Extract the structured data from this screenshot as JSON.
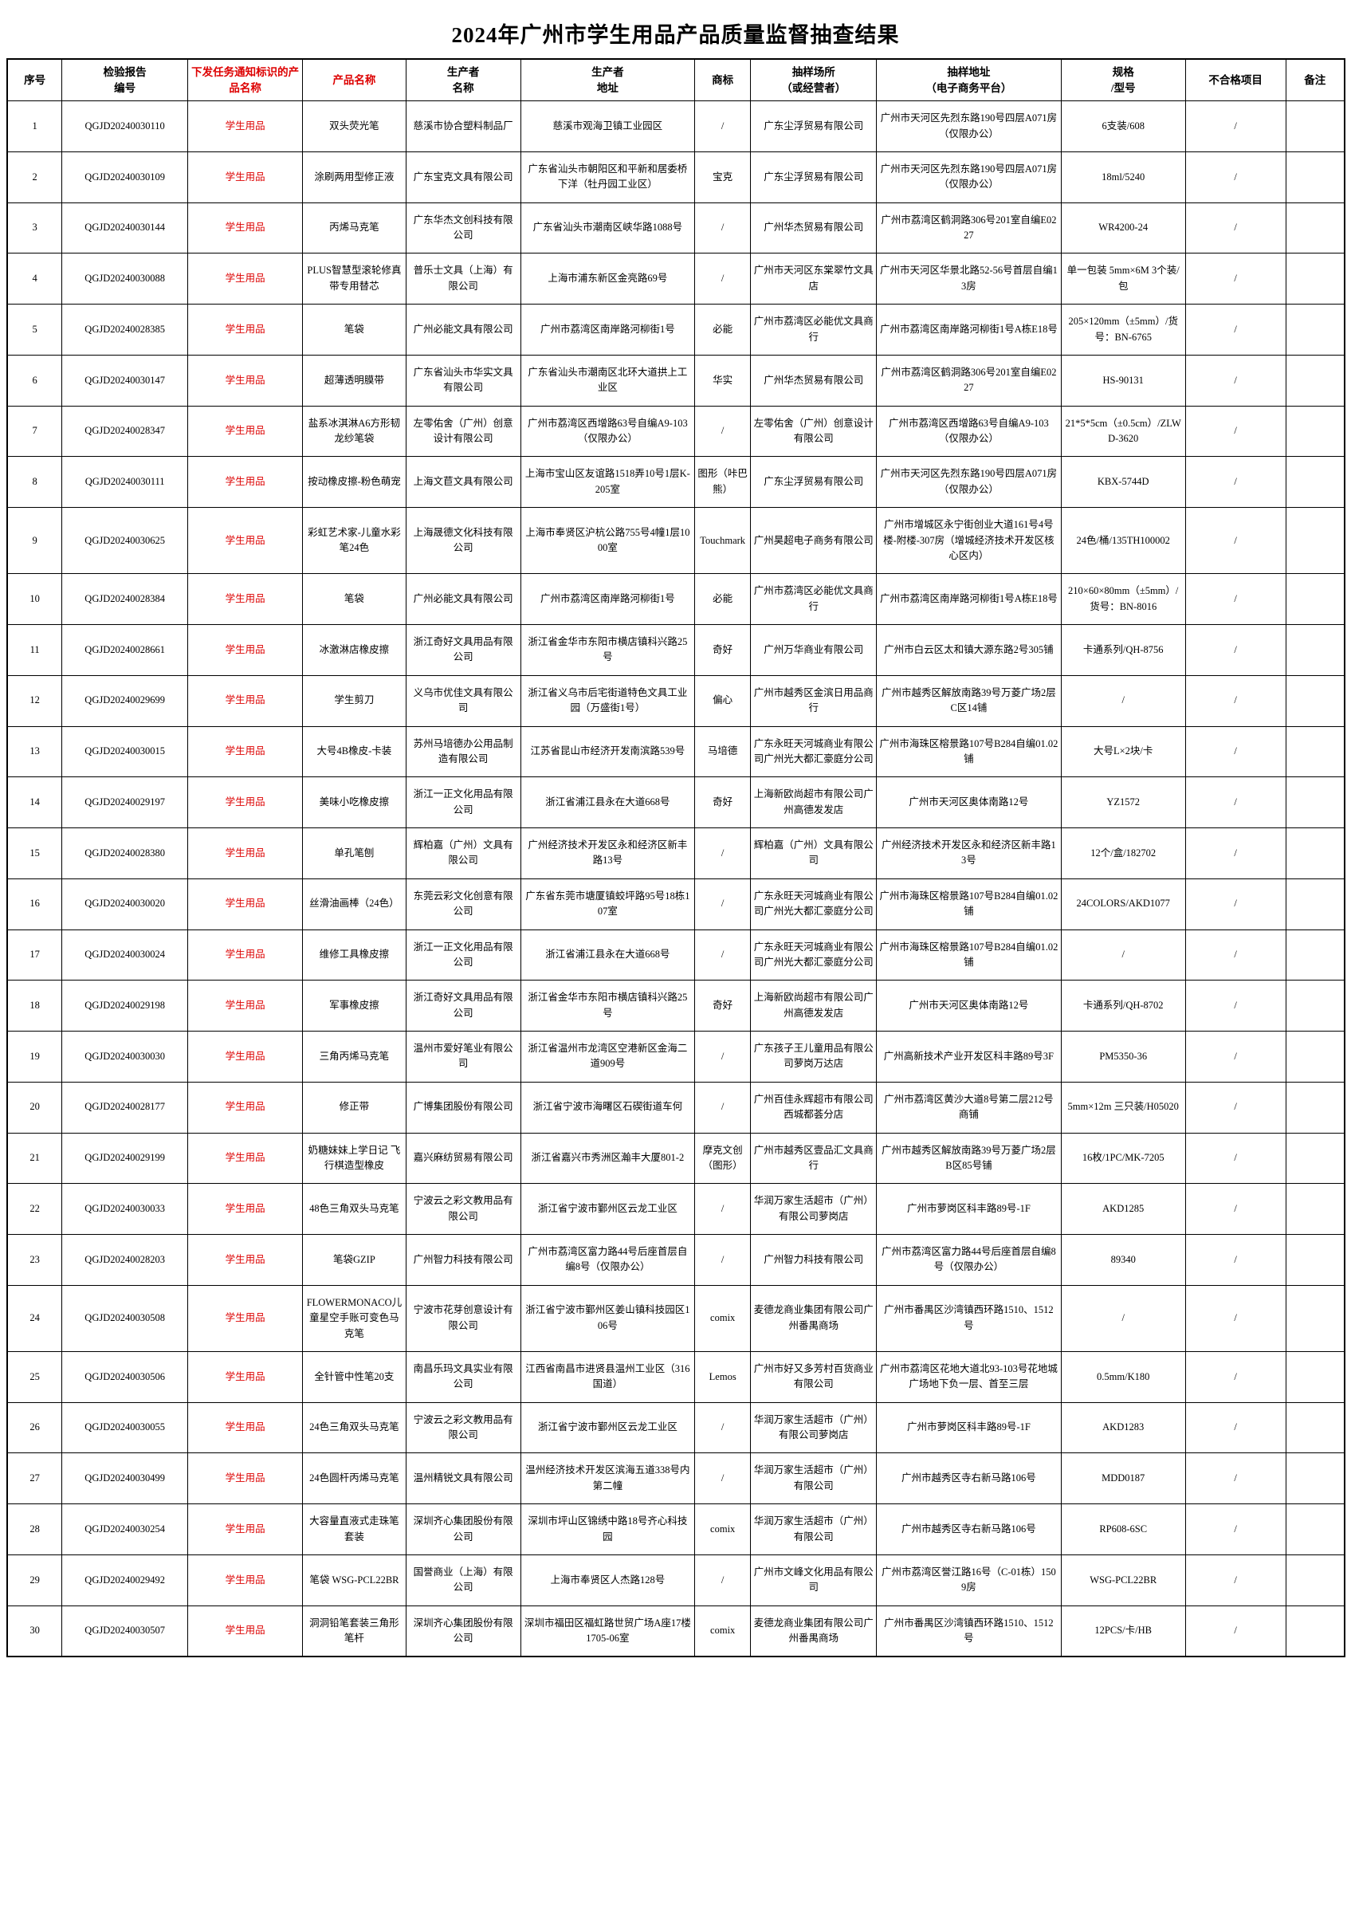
{
  "title": "2024年广州市学生用品产品质量监督抽查结果",
  "accent_red": "#dd0000",
  "table": {
    "columns": [
      {
        "label": "序号",
        "red": false
      },
      {
        "label": "检验报告\n编号",
        "red": false
      },
      {
        "label": "下发任务通知标识的产品名称",
        "red": true
      },
      {
        "label": "产品名称",
        "red": true
      },
      {
        "label": "生产者\n名称",
        "red": false
      },
      {
        "label": "生产者\n地址",
        "red": false
      },
      {
        "label": "商标",
        "red": false
      },
      {
        "label": "抽样场所\n（或经营者）",
        "red": false
      },
      {
        "label": "抽样地址\n（电子商务平台）",
        "red": false
      },
      {
        "label": "规格\n/型号",
        "red": false
      },
      {
        "label": "不合格项目",
        "red": false
      },
      {
        "label": "备注",
        "red": false
      }
    ],
    "red_value_column": 2,
    "rows": [
      [
        "1",
        "QGJD20240030110",
        "学生用品",
        "双头荧光笔",
        "慈溪市协合塑料制品厂",
        "慈溪市观海卫镇工业园区",
        "/",
        "广东尘浮贸易有限公司",
        "广州市天河区先烈东路190号四层A071房（仅限办公）",
        "6支装/608",
        "/",
        ""
      ],
      [
        "2",
        "QGJD20240030109",
        "学生用品",
        "涂刷两用型修正液",
        "广东宝克文具有限公司",
        "广东省汕头市朝阳区和平新和居委桥下洋（牡丹园工业区）",
        "宝克",
        "广东尘浮贸易有限公司",
        "广州市天河区先烈东路190号四层A071房（仅限办公）",
        "18ml/5240",
        "/",
        ""
      ],
      [
        "3",
        "QGJD20240030144",
        "学生用品",
        "丙烯马克笔",
        "广东华杰文创科技有限公司",
        "广东省汕头市潮南区峡华路1088号",
        "/",
        "广州华杰贸易有限公司",
        "广州市荔湾区鹤洞路306号201室自编E0227",
        "WR4200-24",
        "/",
        ""
      ],
      [
        "4",
        "QGJD20240030088",
        "学生用品",
        "PLUS智慧型滚轮修真带专用替芯",
        "普乐士文具（上海）有限公司",
        "上海市浦东新区金亮路69号",
        "/",
        "广州市天河区东棠翠竹文具店",
        "广州市天河区华景北路52-56号首层自编13房",
        "单一包装 5mm×6M 3个装/包",
        "/",
        ""
      ],
      [
        "5",
        "QGJD20240028385",
        "学生用品",
        "笔袋",
        "广州必能文具有限公司",
        "广州市荔湾区南岸路河柳街1号",
        "必能",
        "广州市荔湾区必能优文具商行",
        "广州市荔湾区南岸路河柳街1号A栋E18号",
        "205×120mm（±5mm）/货号：BN-6765",
        "/",
        ""
      ],
      [
        "6",
        "QGJD20240030147",
        "学生用品",
        "超薄透明膜带",
        "广东省汕头市华实文具有限公司",
        "广东省汕头市潮南区北环大道拱上工业区",
        "华实",
        "广州华杰贸易有限公司",
        "广州市荔湾区鹤洞路306号201室自编E0227",
        "HS-90131",
        "/",
        ""
      ],
      [
        "7",
        "QGJD20240028347",
        "学生用品",
        "盐系冰淇淋A6方形韧龙纱笔袋",
        "左零佑舍（广州）创意设计有限公司",
        "广州市荔湾区西增路63号自编A9-103（仅限办公）",
        "/",
        "左零佑舍（广州）创意设计有限公司",
        "广州市荔湾区西增路63号自编A9-103（仅限办公）",
        "21*5*5cm（±0.5cm）/ZLWD-3620",
        "/",
        ""
      ],
      [
        "8",
        "QGJD20240030111",
        "学生用品",
        "按动橡皮擦-粉色萌宠",
        "上海文苣文具有限公司",
        "上海市宝山区友谊路1518弄10号1层K-205室",
        "图形（咔巴熊）",
        "广东尘浮贸易有限公司",
        "广州市天河区先烈东路190号四层A071房（仅限办公）",
        "KBX-5744D",
        "/",
        ""
      ],
      [
        "9",
        "QGJD20240030625",
        "学生用品",
        "彩虹艺术家-儿童水彩笔24色",
        "上海晟德文化科技有限公司",
        "上海市奉贤区沪杭公路755号4幢1层1000室",
        "Touchmark",
        "广州昊超电子商务有限公司",
        "广州市增城区永宁街创业大道161号4号楼-附楼-307房（增城经济技术开发区核心区内）",
        "24色/桶/135TH100002",
        "/",
        ""
      ],
      [
        "10",
        "QGJD20240028384",
        "学生用品",
        "笔袋",
        "广州必能文具有限公司",
        "广州市荔湾区南岸路河柳街1号",
        "必能",
        "广州市荔湾区必能优文具商行",
        "广州市荔湾区南岸路河柳街1号A栋E18号",
        "210×60×80mm（±5mm）/货号：BN-8016",
        "/",
        ""
      ],
      [
        "11",
        "QGJD20240028661",
        "学生用品",
        "冰激淋店橡皮擦",
        "浙江奇好文具用品有限公司",
        "浙江省金华市东阳市横店镇科兴路25号",
        "奇好",
        "广州万华商业有限公司",
        "广州市白云区太和镇大源东路2号305铺",
        "卡通系列/QH-8756",
        "/",
        ""
      ],
      [
        "12",
        "QGJD20240029699",
        "学生用品",
        "学生剪刀",
        "义乌市优佳文具有限公司",
        "浙江省义乌市后宅街道特色文具工业园（万盛街1号）",
        "偏心",
        "广州市越秀区金滨日用品商行",
        "广州市越秀区解放南路39号万菱广场2层C区14铺",
        "/",
        "/",
        ""
      ],
      [
        "13",
        "QGJD20240030015",
        "学生用品",
        "大号4B橡皮-卡装",
        "苏州马培德办公用品制造有限公司",
        "江苏省昆山市经济开发南滨路539号",
        "马培德",
        "广东永旺天河城商业有限公司广州光大都汇豪庭分公司",
        "广州市海珠区榕景路107号B284自编01.02铺",
        "大号L×2块/卡",
        "/",
        ""
      ],
      [
        "14",
        "QGJD20240029197",
        "学生用品",
        "美味小吃橡皮擦",
        "浙江一正文化用品有限公司",
        "浙江省浦江县永在大道668号",
        "奇好",
        "上海新欧尚超市有限公司广州高德发发店",
        "广州市天河区奥体南路12号",
        "YZ1572",
        "/",
        ""
      ],
      [
        "15",
        "QGJD20240028380",
        "学生用品",
        "单孔笔刨",
        "辉柏嘉（广州）文具有限公司",
        "广州经济技术开发区永和经济区新丰路13号",
        "/",
        "辉柏嘉（广州）文具有限公司",
        "广州经济技术开发区永和经济区新丰路13号",
        "12个/盒/182702",
        "/",
        ""
      ],
      [
        "16",
        "QGJD20240030020",
        "学生用品",
        "丝滑油画棒（24色）",
        "东莞云彩文化创意有限公司",
        "广东省东莞市塘厦镇蛟坪路95号18栋107室",
        "/",
        "广东永旺天河城商业有限公司广州光大都汇豪庭分公司",
        "广州市海珠区榕景路107号B284自编01.02铺",
        "24COLORS/AKD1077",
        "/",
        ""
      ],
      [
        "17",
        "QGJD20240030024",
        "学生用品",
        "维修工具橡皮擦",
        "浙江一正文化用品有限公司",
        "浙江省浦江县永在大道668号",
        "/",
        "广东永旺天河城商业有限公司广州光大都汇豪庭分公司",
        "广州市海珠区榕景路107号B284自编01.02铺",
        "/",
        "/",
        ""
      ],
      [
        "18",
        "QGJD20240029198",
        "学生用品",
        "军事橡皮擦",
        "浙江奇好文具用品有限公司",
        "浙江省金华市东阳市横店镇科兴路25号",
        "奇好",
        "上海新欧尚超市有限公司广州高德发发店",
        "广州市天河区奥体南路12号",
        "卡通系列/QH-8702",
        "/",
        ""
      ],
      [
        "19",
        "QGJD20240030030",
        "学生用品",
        "三角丙烯马克笔",
        "温州市爱好笔业有限公司",
        "浙江省温州市龙湾区空港新区金海二道909号",
        "/",
        "广东孩子王儿童用品有限公司萝岗万达店",
        "广州高新技术产业开发区科丰路89号3F",
        "PM5350-36",
        "/",
        ""
      ],
      [
        "20",
        "QGJD20240028177",
        "学生用品",
        "修正带",
        "广博集团股份有限公司",
        "浙江省宁波市海曙区石碶街道车何",
        "/",
        "广州百佳永辉超市有限公司西城都荟分店",
        "广州市荔湾区黄沙大道8号第二层212号商铺",
        "5mm×12m 三只装/H05020",
        "/",
        ""
      ],
      [
        "21",
        "QGJD20240029199",
        "学生用品",
        "奶糖妹妹上学日记 飞行棋造型橡皮",
        "嘉兴麻纺贸易有限公司",
        "浙江省嘉兴市秀洲区瀚丰大厦801-2",
        "摩克文创（图形）",
        "广州市越秀区壹品汇文具商行",
        "广州市越秀区解放南路39号万菱广场2层B区85号铺",
        "16枚/1PC/MK-7205",
        "/",
        ""
      ],
      [
        "22",
        "QGJD20240030033",
        "学生用品",
        "48色三角双头马克笔",
        "宁波云之彩文教用品有限公司",
        "浙江省宁波市鄞州区云龙工业区",
        "/",
        "华润万家生活超市（广州）有限公司萝岗店",
        "广州市萝岗区科丰路89号-1F",
        "AKD1285",
        "/",
        ""
      ],
      [
        "23",
        "QGJD20240028203",
        "学生用品",
        "笔袋GZIP",
        "广州智力科技有限公司",
        "广州市荔湾区富力路44号后座首层自编8号（仅限办公）",
        "/",
        "广州智力科技有限公司",
        "广州市荔湾区富力路44号后座首层自编8号（仅限办公）",
        "89340",
        "/",
        ""
      ],
      [
        "24",
        "QGJD20240030508",
        "学生用品",
        "FLOWERMONACO儿童星空手账可变色马克笔",
        "宁波市花芽创意设计有限公司",
        "浙江省宁波市鄞州区姜山镇科技园区106号",
        "comix",
        "麦德龙商业集团有限公司广州番禺商场",
        "广州市番禺区沙湾镇西环路1510、1512号",
        "/",
        "/",
        ""
      ],
      [
        "25",
        "QGJD20240030506",
        "学生用品",
        "全针管中性笔20支",
        "南昌乐玛文具实业有限公司",
        "江西省南昌市进贤县温州工业区（316国道）",
        "Lemos",
        "广州市好又多芳村百货商业有限公司",
        "广州市荔湾区花地大道北93-103号花地城广场地下负一层、首至三层",
        "0.5mm/K180",
        "/",
        ""
      ],
      [
        "26",
        "QGJD20240030055",
        "学生用品",
        "24色三角双头马克笔",
        "宁波云之彩文教用品有限公司",
        "浙江省宁波市鄞州区云龙工业区",
        "/",
        "华润万家生活超市（广州）有限公司萝岗店",
        "广州市萝岗区科丰路89号-1F",
        "AKD1283",
        "/",
        ""
      ],
      [
        "27",
        "QGJD20240030499",
        "学生用品",
        "24色圆杆丙烯马克笔",
        "温州精锐文具有限公司",
        "温州经济技术开发区滨海五道338号内第二幢",
        "/",
        "华润万家生活超市（广州）有限公司",
        "广州市越秀区寺右新马路106号",
        "MDD0187",
        "/",
        ""
      ],
      [
        "28",
        "QGJD20240030254",
        "学生用品",
        "大容量直液式走珠笔套装",
        "深圳齐心集团股份有限公司",
        "深圳市坪山区锦绣中路18号齐心科技园",
        "comix",
        "华润万家生活超市（广州）有限公司",
        "广州市越秀区寺右新马路106号",
        "RP608-6SC",
        "/",
        ""
      ],
      [
        "29",
        "QGJD20240029492",
        "学生用品",
        "笔袋 WSG-PCL22BR",
        "国誉商业（上海）有限公司",
        "上海市奉贤区人杰路128号",
        "/",
        "广州市文峰文化用品有限公司",
        "广州市荔湾区誉江路16号（C-01栋）1509房",
        "WSG-PCL22BR",
        "/",
        ""
      ],
      [
        "30",
        "QGJD20240030507",
        "学生用品",
        "洞洞铅笔套装三角形笔杆",
        "深圳齐心集团股份有限公司",
        "深圳市福田区福虹路世贸广场A座17楼1705-06室",
        "comix",
        "麦德龙商业集团有限公司广州番禺商场",
        "广州市番禺区沙湾镇西环路1510、1512号",
        "12PCS/卡/HB",
        "/",
        ""
      ]
    ]
  }
}
